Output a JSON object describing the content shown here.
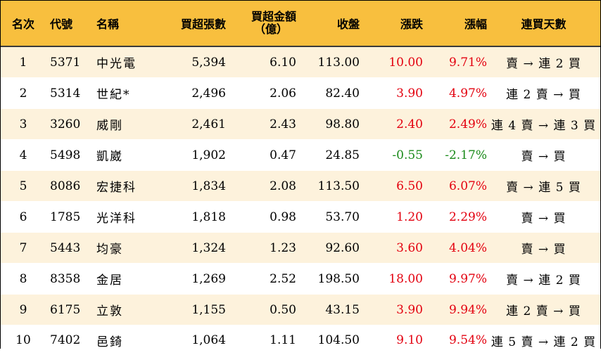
{
  "header": {
    "rank": "名次",
    "code": "代號",
    "name": "名稱",
    "net_buy_lots": "買超張數",
    "net_buy_amount_line1": "買超金額",
    "net_buy_amount_line2": "（億）",
    "close": "收盤",
    "change": "漲跌",
    "change_pct": "漲幅",
    "consecutive_days": "連買天數"
  },
  "colors": {
    "header_bg": "#f8bf3e",
    "row_alt_bg": "#fdf2dc",
    "up": "#e3000f",
    "down": "#1a8a1a"
  },
  "rows": [
    {
      "rank": "1",
      "code": "5371",
      "name": "中光電",
      "lots": "5,394",
      "amount": "6.10",
      "close": "113.00",
      "change": "10.00",
      "pct": "9.71%",
      "dir": "up",
      "days": "賣 → 連 2 買"
    },
    {
      "rank": "2",
      "code": "5314",
      "name": "世紀*",
      "lots": "2,496",
      "amount": "2.06",
      "close": "82.40",
      "change": "3.90",
      "pct": "4.97%",
      "dir": "up",
      "days": "連 2 賣 → 買"
    },
    {
      "rank": "3",
      "code": "3260",
      "name": "威剛",
      "lots": "2,461",
      "amount": "2.43",
      "close": "98.80",
      "change": "2.40",
      "pct": "2.49%",
      "dir": "up",
      "days": "連 4 賣 → 連 3 買"
    },
    {
      "rank": "4",
      "code": "5498",
      "name": "凱崴",
      "lots": "1,902",
      "amount": "0.47",
      "close": "24.85",
      "change": "-0.55",
      "pct": "-2.17%",
      "dir": "down",
      "days": "賣 → 買"
    },
    {
      "rank": "5",
      "code": "8086",
      "name": "宏捷科",
      "lots": "1,834",
      "amount": "2.08",
      "close": "113.50",
      "change": "6.50",
      "pct": "6.07%",
      "dir": "up",
      "days": "賣 → 連 5 買"
    },
    {
      "rank": "6",
      "code": "1785",
      "name": "光洋科",
      "lots": "1,818",
      "amount": "0.98",
      "close": "53.70",
      "change": "1.20",
      "pct": "2.29%",
      "dir": "up",
      "days": "賣 → 買"
    },
    {
      "rank": "7",
      "code": "5443",
      "name": "均豪",
      "lots": "1,324",
      "amount": "1.23",
      "close": "92.60",
      "change": "3.60",
      "pct": "4.04%",
      "dir": "up",
      "days": "賣 → 買"
    },
    {
      "rank": "8",
      "code": "8358",
      "name": "金居",
      "lots": "1,269",
      "amount": "2.52",
      "close": "198.50",
      "change": "18.00",
      "pct": "9.97%",
      "dir": "up",
      "days": "賣 → 連 2 買"
    },
    {
      "rank": "9",
      "code": "6175",
      "name": "立敦",
      "lots": "1,155",
      "amount": "0.50",
      "close": "43.15",
      "change": "3.90",
      "pct": "9.94%",
      "dir": "up",
      "days": "連 2 賣 → 買"
    },
    {
      "rank": "10",
      "code": "7402",
      "name": "邑錡",
      "lots": "1,064",
      "amount": "1.11",
      "close": "104.50",
      "change": "9.10",
      "pct": "9.54%",
      "dir": "up",
      "days": "連 5 賣 → 連 2 買"
    }
  ]
}
